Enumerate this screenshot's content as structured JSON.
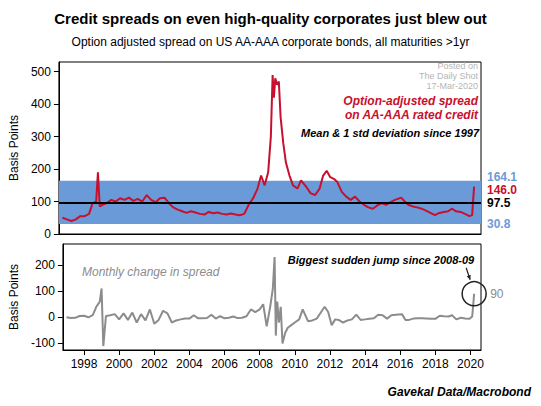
{
  "chart_data": [
    {
      "type": "line",
      "title": "Credit spreads on even high-quality corporates just blew out",
      "subtitle": "Option adjusted spread on US AA-AAA corporate bonds, all maturities >1yr",
      "source": "Gavekal Data/Macrobond",
      "watermark": [
        "Posted on",
        "The Daily Shot",
        "17-Mar-2020"
      ],
      "y_label": "Basis Points",
      "annotations": [
        "Option-adjusted spread\non AA-AAA rated credit",
        "Mean & 1 std deviation since 1997"
      ],
      "color": "#c8102e",
      "band": {
        "range": [
          30.8,
          164.1
        ],
        "labels": [
          "30.8",
          "164.1"
        ],
        "color": "#6a9bd8"
      },
      "mean": {
        "value": 97.5,
        "label": "97.5",
        "color": "#000000"
      },
      "last": {
        "value": 146.0,
        "label": "146.0",
        "color": "#c8102e"
      },
      "x": [
        1997,
        1997.25,
        1997.5,
        1997.75,
        1998,
        1998.25,
        1998.5,
        1998.7,
        1998.9,
        1999,
        1999.1,
        1999.25,
        1999.5,
        1999.75,
        2000,
        2000.25,
        2000.5,
        2000.75,
        2001,
        2001.25,
        2001.5,
        2001.75,
        2002,
        2002.25,
        2002.5,
        2002.75,
        2003,
        2003.25,
        2003.5,
        2003.75,
        2004,
        2004.25,
        2004.5,
        2004.75,
        2005,
        2005.25,
        2005.5,
        2005.75,
        2006,
        2006.25,
        2006.5,
        2006.75,
        2007,
        2007.25,
        2007.5,
        2007.75,
        2008,
        2008.2,
        2008.4,
        2008.6,
        2008.75,
        2008.85,
        2008.92,
        2009,
        2009.1,
        2009.2,
        2009.3,
        2009.45,
        2009.6,
        2009.8,
        2010,
        2010.25,
        2010.45,
        2010.75,
        2011,
        2011.25,
        2011.5,
        2011.7,
        2011.9,
        2012.1,
        2012.3,
        2012.5,
        2012.75,
        2013,
        2013.25,
        2013.5,
        2013.75,
        2014,
        2014.25,
        2014.5,
        2014.75,
        2015,
        2015.25,
        2015.5,
        2015.75,
        2016.1,
        2016.3,
        2016.5,
        2016.75,
        2017,
        2017.25,
        2017.5,
        2017.75,
        2018,
        2018.25,
        2018.5,
        2018.75,
        2018.95,
        2019.2,
        2019.45,
        2019.7,
        2019.95,
        2020.1,
        2020.21
      ],
      "values": [
        50,
        45,
        40,
        45,
        55,
        55,
        62,
        95,
        100,
        190,
        85,
        90,
        95,
        105,
        100,
        110,
        105,
        112,
        102,
        108,
        100,
        120,
        105,
        98,
        110,
        112,
        95,
        82,
        75,
        70,
        65,
        70,
        66,
        62,
        60,
        68,
        64,
        66,
        62,
        60,
        63,
        60,
        58,
        62,
        90,
        110,
        140,
        180,
        150,
        190,
        300,
        490,
        420,
        480,
        460,
        470,
        360,
        280,
        220,
        180,
        150,
        140,
        165,
        145,
        125,
        120,
        140,
        180,
        195,
        175,
        170,
        160,
        130,
        115,
        105,
        115,
        100,
        90,
        82,
        78,
        88,
        95,
        90,
        98,
        105,
        112,
        100,
        90,
        85,
        82,
        78,
        72,
        65,
        58,
        65,
        68,
        70,
        78,
        70,
        68,
        62,
        55,
        58,
        146
      ],
      "xlim": [
        1996.8,
        2020.6
      ],
      "xticks": [
        1998,
        2000,
        2002,
        2004,
        2006,
        2008,
        2010,
        2012,
        2014,
        2016,
        2018,
        2020
      ],
      "ylim": [
        0,
        530
      ],
      "yticks": [
        0,
        100,
        200,
        300,
        400,
        500
      ],
      "grid": false,
      "tick_labels": "y"
    },
    {
      "type": "line",
      "y_label": "Basis Points",
      "annotations": [
        "Monthly change in spread",
        "Biggest sudden jump since 2008-09"
      ],
      "color": "#8c8c8c",
      "x": [
        1997,
        1997.25,
        1997.5,
        1997.75,
        1998,
        1998.25,
        1998.5,
        1998.7,
        1998.9,
        1999,
        1999.1,
        1999.25,
        1999.5,
        1999.75,
        2000,
        2000.25,
        2000.5,
        2000.75,
        2001,
        2001.25,
        2001.5,
        2001.75,
        2002,
        2002.25,
        2002.5,
        2002.75,
        2003,
        2003.25,
        2003.5,
        2003.75,
        2004,
        2004.25,
        2004.5,
        2004.75,
        2005,
        2005.25,
        2005.5,
        2005.75,
        2006,
        2006.25,
        2006.5,
        2006.75,
        2007,
        2007.25,
        2007.5,
        2007.75,
        2008,
        2008.2,
        2008.4,
        2008.6,
        2008.75,
        2008.85,
        2008.92,
        2009,
        2009.1,
        2009.2,
        2009.3,
        2009.45,
        2009.6,
        2009.8,
        2010,
        2010.25,
        2010.45,
        2010.75,
        2011,
        2011.25,
        2011.5,
        2011.7,
        2011.9,
        2012.1,
        2012.3,
        2012.5,
        2012.75,
        2013,
        2013.25,
        2013.5,
        2013.75,
        2014,
        2014.25,
        2014.5,
        2014.75,
        2015,
        2015.25,
        2015.5,
        2015.75,
        2016.1,
        2016.3,
        2016.5,
        2016.75,
        2017,
        2017.25,
        2017.5,
        2017.75,
        2018,
        2018.25,
        2018.5,
        2018.75,
        2018.95,
        2019.2,
        2019.45,
        2019.7,
        2019.95,
        2020.1,
        2020.21
      ],
      "values": [
        0,
        -3,
        -2,
        5,
        6,
        0,
        8,
        40,
        60,
        110,
        -110,
        5,
        8,
        12,
        -8,
        15,
        -10,
        18,
        -20,
        12,
        -12,
        30,
        -25,
        -10,
        25,
        15,
        -20,
        -12,
        -8,
        -5,
        -5,
        8,
        -4,
        -4,
        -3,
        10,
        -5,
        4,
        -4,
        -2,
        3,
        -3,
        -2,
        4,
        30,
        20,
        30,
        50,
        -35,
        40,
        110,
        230,
        -70,
        60,
        -20,
        40,
        -100,
        -60,
        -40,
        -30,
        -20,
        -8,
        30,
        -15,
        -12,
        -5,
        20,
        40,
        20,
        -30,
        -8,
        -10,
        -20,
        -12,
        -8,
        10,
        -10,
        -8,
        -6,
        -4,
        10,
        8,
        -5,
        8,
        10,
        12,
        -10,
        -10,
        -5,
        -4,
        -4,
        -5,
        -6,
        -6,
        6,
        4,
        3,
        8,
        -8,
        -2,
        -5,
        -6,
        3,
        90
      ],
      "xlim": [
        1996.8,
        2020.6
      ],
      "xticks": [
        1998,
        2000,
        2002,
        2004,
        2006,
        2008,
        2010,
        2012,
        2014,
        2016,
        2018,
        2020
      ],
      "ylim": [
        -125,
        280
      ],
      "yticks": [
        -100,
        0,
        100,
        200
      ],
      "grid": false
    }
  ]
}
